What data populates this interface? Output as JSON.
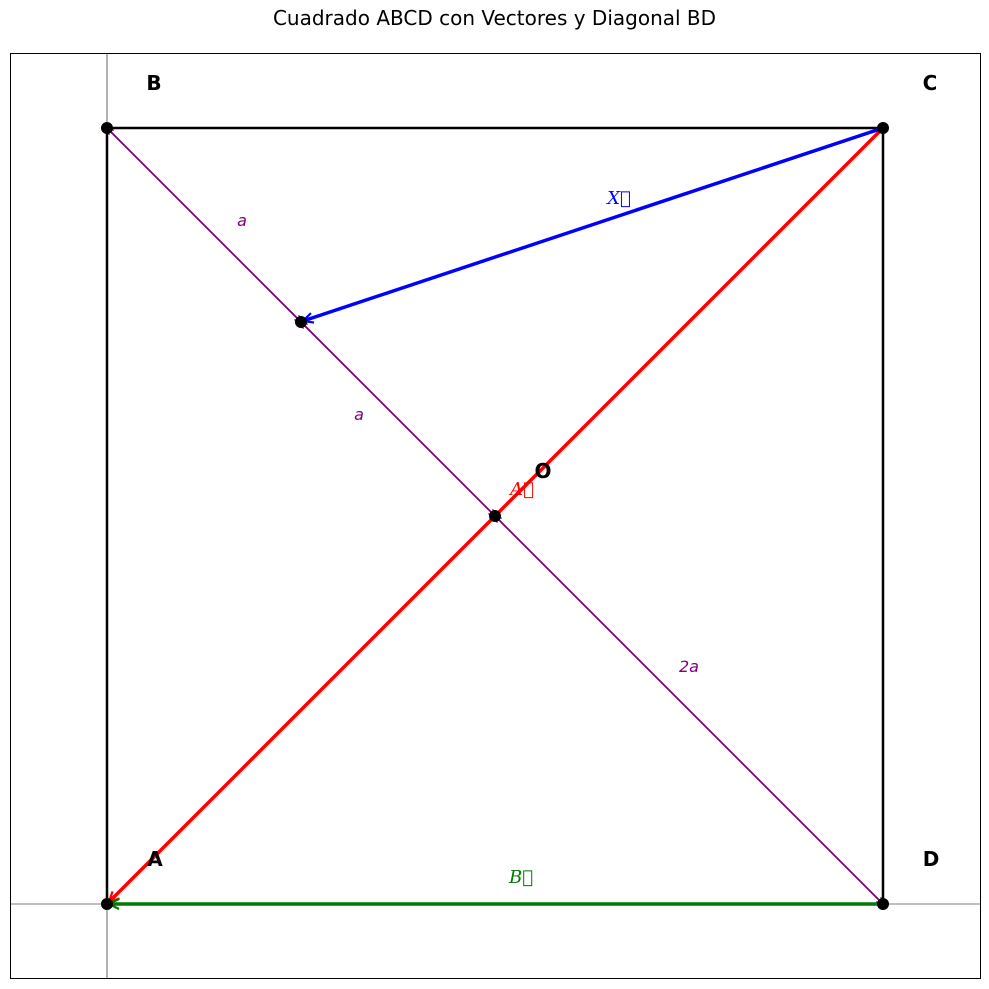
{
  "title": "Cuadrado ABCD con Vectores y Diagonal BD",
  "points": {
    "A": {
      "label": "A"
    },
    "B": {
      "label": "B"
    },
    "C": {
      "label": "C"
    },
    "D": {
      "label": "D"
    },
    "O": {
      "label": "O"
    }
  },
  "segment_labels": {
    "b_to_p": "a",
    "p_to_o": "a",
    "o_to_d": "2a"
  },
  "vectors": {
    "X": {
      "label": "X⃗",
      "color": "#0000ff"
    },
    "A": {
      "label": "A⃗",
      "color": "#ff0000"
    },
    "B": {
      "label": "B⃗",
      "color": "#007a00"
    }
  },
  "colors": {
    "square": "#000000",
    "diagonal_bd": "#800080",
    "points": "#000000"
  }
}
